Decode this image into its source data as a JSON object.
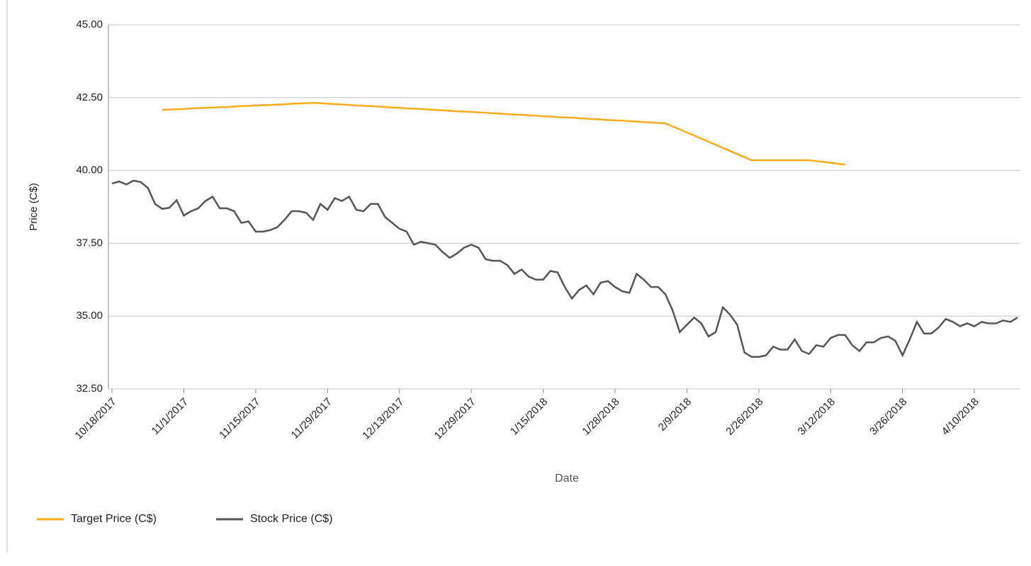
{
  "chart_data": {
    "type": "line",
    "x_label": "Date",
    "y_label": "Price (C$)",
    "categories": [
      "10/18/2017",
      null,
      null,
      null,
      null,
      null,
      null,
      null,
      null,
      null,
      "11/1/2017",
      null,
      null,
      null,
      null,
      null,
      null,
      null,
      null,
      null,
      "11/15/2017",
      null,
      null,
      null,
      null,
      null,
      null,
      null,
      null,
      null,
      "11/29/2017",
      null,
      null,
      null,
      null,
      null,
      null,
      null,
      null,
      null,
      "12/13/2017",
      null,
      null,
      null,
      null,
      null,
      null,
      null,
      null,
      null,
      "12/29/2017",
      null,
      null,
      null,
      null,
      null,
      null,
      null,
      null,
      null,
      "1/15/2018",
      null,
      null,
      null,
      null,
      null,
      null,
      null,
      null,
      null,
      "1/28/2018",
      null,
      null,
      null,
      null,
      null,
      null,
      null,
      null,
      null,
      "2/9/2018",
      null,
      null,
      null,
      null,
      null,
      null,
      null,
      null,
      null,
      "2/26/2018",
      null,
      null,
      null,
      null,
      null,
      null,
      null,
      null,
      null,
      "3/12/2018",
      null,
      null,
      null,
      null,
      null,
      null,
      null,
      null,
      null,
      "3/26/2018",
      null,
      null,
      null,
      null,
      null,
      null,
      null,
      null,
      null,
      "4/10/2018",
      null,
      null,
      null,
      null,
      null,
      null
    ],
    "series": [
      {
        "name": "Target Price (C$)",
        "color": "#f4ab1c",
        "values": [
          null,
          null,
          null,
          null,
          null,
          null,
          null,
          42.08,
          42.09,
          42.1,
          42.11,
          42.13,
          42.14,
          42.15,
          42.16,
          42.17,
          42.18,
          42.19,
          42.21,
          42.22,
          42.23,
          42.24,
          42.25,
          42.26,
          42.27,
          42.29,
          42.3,
          42.31,
          42.32,
          42.31,
          42.29,
          42.28,
          42.26,
          42.25,
          42.23,
          42.22,
          42.21,
          42.19,
          42.18,
          42.16,
          42.15,
          42.13,
          42.12,
          42.11,
          42.09,
          42.08,
          42.06,
          42.05,
          42.03,
          42.02,
          42.01,
          41.99,
          41.98,
          41.96,
          41.95,
          41.93,
          41.92,
          41.91,
          41.89,
          41.88,
          41.86,
          41.85,
          41.83,
          41.82,
          41.81,
          41.79,
          41.78,
          41.76,
          41.75,
          41.73,
          41.72,
          41.71,
          41.69,
          41.68,
          41.66,
          41.65,
          41.63,
          41.62,
          41.51,
          41.41,
          41.3,
          41.2,
          41.09,
          40.99,
          40.88,
          40.77,
          40.67,
          40.56,
          40.46,
          40.35,
          40.35,
          40.35,
          40.35,
          40.35,
          40.35,
          40.35,
          40.35,
          40.35,
          40.32,
          40.29,
          40.26,
          40.23,
          40.2,
          null,
          null,
          null,
          null,
          null,
          null,
          null,
          null,
          null,
          null,
          null,
          null,
          null,
          null,
          null,
          null,
          null,
          null,
          null,
          null,
          null,
          null,
          null,
          null
        ]
      },
      {
        "name": "Stock Price (C$)",
        "color": "#555555",
        "values": [
          39.55,
          39.62,
          39.52,
          39.65,
          39.6,
          39.4,
          38.85,
          38.68,
          38.72,
          38.98,
          38.45,
          38.6,
          38.7,
          38.95,
          39.1,
          38.7,
          38.7,
          38.6,
          38.2,
          38.25,
          37.9,
          37.9,
          37.95,
          38.05,
          38.3,
          38.6,
          38.6,
          38.55,
          38.3,
          38.85,
          38.65,
          39.05,
          38.95,
          39.1,
          38.65,
          38.6,
          38.85,
          38.85,
          38.4,
          38.2,
          38.0,
          37.9,
          37.45,
          37.55,
          37.5,
          37.45,
          37.2,
          37.0,
          37.15,
          37.35,
          37.45,
          37.35,
          36.95,
          36.9,
          36.9,
          36.75,
          36.45,
          36.6,
          36.35,
          36.25,
          36.25,
          36.55,
          36.5,
          36.0,
          35.6,
          35.9,
          36.05,
          35.75,
          36.15,
          36.2,
          36.0,
          35.85,
          35.8,
          36.45,
          36.25,
          36.0,
          36.0,
          35.75,
          35.2,
          34.45,
          34.7,
          34.95,
          34.75,
          34.3,
          34.45,
          35.3,
          35.05,
          34.7,
          33.75,
          33.6,
          33.6,
          33.65,
          33.95,
          33.85,
          33.85,
          34.2,
          33.8,
          33.7,
          34.0,
          33.95,
          34.25,
          34.35,
          34.35,
          34.0,
          33.8,
          34.1,
          34.1,
          34.25,
          34.3,
          34.15,
          33.65,
          34.2,
          34.8,
          34.4,
          34.4,
          34.6,
          34.9,
          34.8,
          34.65,
          34.75,
          34.65,
          34.8,
          34.75,
          34.75,
          34.85,
          34.8,
          34.95
        ]
      }
    ],
    "ylim": [
      32.5,
      45
    ],
    "yticks": [
      {
        "value": 32.5,
        "label": "32.50"
      },
      {
        "value": 35,
        "label": "35.00"
      },
      {
        "value": 37.5,
        "label": "37.50"
      },
      {
        "value": 40,
        "label": "40.00"
      },
      {
        "value": 42.5,
        "label": "42.50"
      },
      {
        "value": 45,
        "label": "45.00"
      }
    ],
    "grid": true,
    "legend": "bottom-left"
  }
}
